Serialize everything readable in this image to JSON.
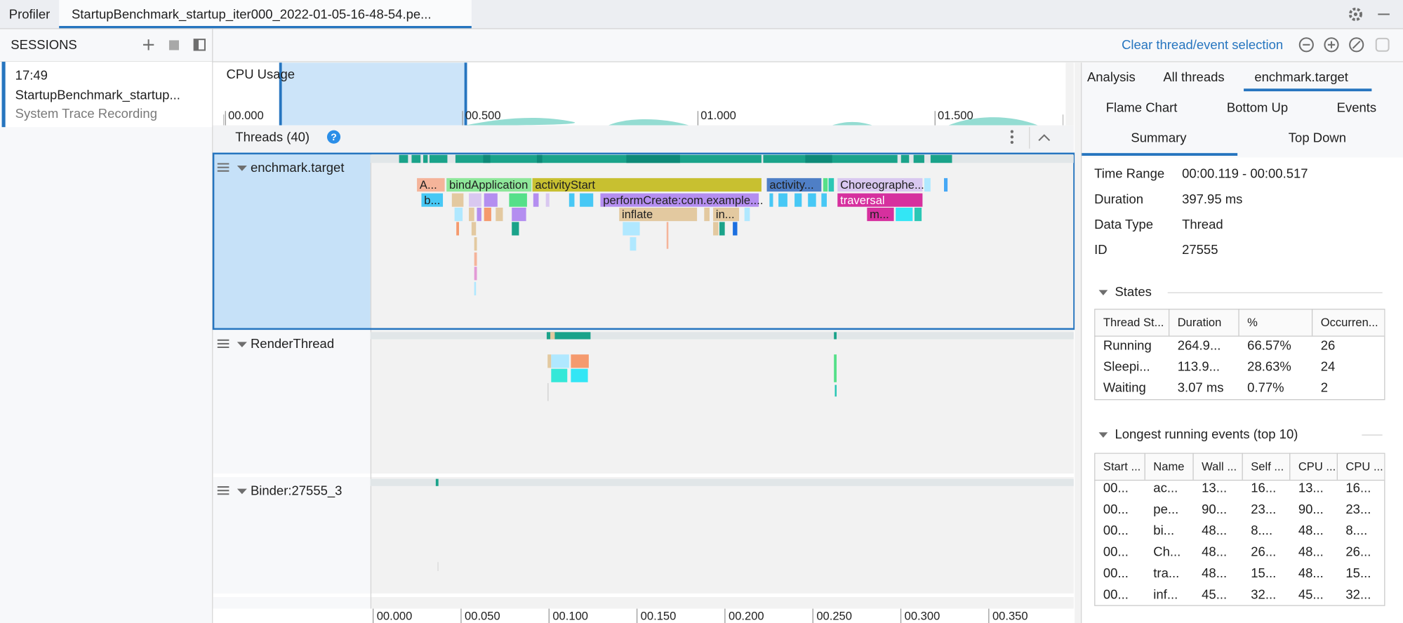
{
  "tabs": [
    "Profiler",
    "StartupBenchmark_startup_iter000_2022-01-05-16-48-54.pe..."
  ],
  "sessions": {
    "title": "SESSIONS",
    "items": [
      {
        "time": "17:49",
        "name": "StartupBenchmark_startup...",
        "type": "System Trace Recording"
      }
    ]
  },
  "toolbar": {
    "clear_selection": "Clear thread/event selection"
  },
  "cpu_usage": {
    "title": "CPU Usage",
    "axis": [
      "00.000",
      "00.500",
      "01.000",
      "01.500"
    ]
  },
  "threads": {
    "title": "Threads (40)",
    "help": "?",
    "items": [
      "enchmark.target",
      "RenderThread",
      "Binder:27555_3"
    ]
  },
  "events": [
    "A...",
    "bindApplication",
    "activityStart",
    "activity...",
    "Choreographe...",
    "b...",
    "performCreate:com.example....",
    "traversal",
    "inflate",
    "in...",
    "m..."
  ],
  "timeline_axis": [
    "00.000",
    "00.050",
    "00.100",
    "00.150",
    "00.200",
    "00.250",
    "00.300",
    "00.350"
  ],
  "analysis": {
    "tabs": [
      "Analysis",
      "All threads",
      "enchmark.target"
    ],
    "subtabs": [
      "Flame Chart",
      "Bottom Up",
      "Events",
      "Summary",
      "Top Down"
    ],
    "summary": [
      [
        "Time Range",
        "00:00.119 - 00:00.517"
      ],
      [
        "Duration",
        "397.95 ms"
      ],
      [
        "Data Type",
        "Thread"
      ],
      [
        "ID",
        "27555"
      ]
    ],
    "states": {
      "title": "States",
      "columns": [
        "Thread St...",
        "Duration",
        "%",
        "Occurren..."
      ],
      "rows": [
        [
          "Running",
          "264.9...",
          "66.57%",
          "26"
        ],
        [
          "Sleepi...",
          "113.9...",
          "28.63%",
          "24"
        ],
        [
          "Waiting",
          "3.07 ms",
          "0.77%",
          "2"
        ]
      ]
    },
    "longest": {
      "title": "Longest running events (top 10)",
      "columns": [
        "Start ...",
        "Name",
        "Wall ...",
        "Self ...",
        "CPU ...",
        "CPU ..."
      ],
      "rows": [
        [
          "00...",
          "ac...",
          "13...",
          "16...",
          "13...",
          "16..."
        ],
        [
          "00...",
          "pe...",
          "90...",
          "23...",
          "90...",
          "23..."
        ],
        [
          "00...",
          "bi...",
          "48...",
          "8....",
          "48...",
          "8...."
        ],
        [
          "00...",
          "Ch...",
          "48...",
          "26...",
          "48...",
          "26..."
        ],
        [
          "00...",
          "tra...",
          "48...",
          "15...",
          "48...",
          "15..."
        ],
        [
          "00...",
          "inf...",
          "45...",
          "32...",
          "45...",
          "32..."
        ]
      ]
    }
  }
}
